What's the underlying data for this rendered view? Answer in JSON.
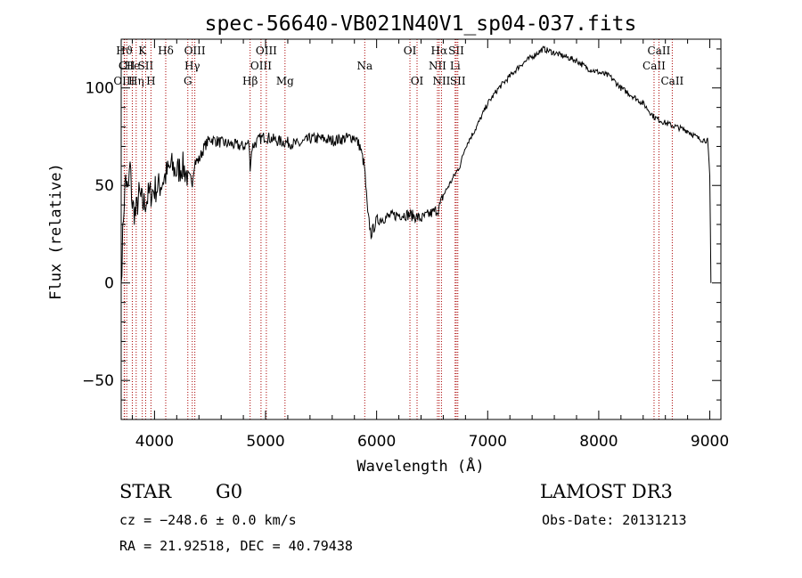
{
  "chart_data": {
    "type": "line",
    "title": "spec-56640-VB021N40V1_sp04-037.fits",
    "xlabel": "Wavelength (Å)",
    "ylabel": "Flux (relative)",
    "xlim": [
      3700,
      9100
    ],
    "ylim": [
      -70,
      125
    ],
    "x_ticks": [
      4000,
      5000,
      6000,
      7000,
      8000,
      9000
    ],
    "y_ticks": [
      -50,
      0,
      50,
      100
    ],
    "series": [
      {
        "name": "flux",
        "x": [
          3700,
          3720,
          3740,
          3760,
          3780,
          3800,
          3830,
          3860,
          3900,
          3950,
          4000,
          4050,
          4100,
          4150,
          4200,
          4250,
          4300,
          4340,
          4360,
          4400,
          4450,
          4500,
          4600,
          4700,
          4800,
          4850,
          4861,
          4880,
          4950,
          5000,
          5100,
          5200,
          5300,
          5400,
          5500,
          5600,
          5700,
          5800,
          5850,
          5890,
          5920,
          5950,
          6000,
          6100,
          6200,
          6300,
          6400,
          6500,
          6560,
          6600,
          6650,
          6700,
          6750,
          6800,
          6900,
          7000,
          7100,
          7200,
          7300,
          7400,
          7500,
          7600,
          7700,
          7800,
          7900,
          8000,
          8100,
          8200,
          8300,
          8400,
          8500,
          8600,
          8700,
          8800,
          8900,
          8980,
          9000,
          9010
        ],
        "y": [
          0,
          35,
          55,
          45,
          60,
          40,
          35,
          45,
          40,
          45,
          48,
          50,
          55,
          60,
          57,
          60,
          55,
          52,
          62,
          63,
          70,
          74,
          72,
          71,
          70,
          72,
          60,
          70,
          74,
          75,
          73,
          72,
          71,
          74,
          74,
          73,
          74,
          75,
          70,
          60,
          35,
          25,
          32,
          34,
          35,
          35,
          33,
          36,
          38,
          45,
          50,
          55,
          60,
          70,
          80,
          92,
          100,
          106,
          112,
          116,
          120,
          118,
          116,
          114,
          110,
          108,
          106,
          100,
          96,
          92,
          85,
          82,
          80,
          78,
          74,
          73,
          55,
          0
        ]
      }
    ],
    "line_ids": [
      {
        "w": 3730,
        "label": "Hϑ",
        "row": 0
      },
      {
        "w": 3750,
        "label": "CII",
        "row": 1
      },
      {
        "w": 3727,
        "label": "OIII",
        "row": 2
      },
      {
        "w": 3800,
        "label": "He",
        "row": 1
      },
      {
        "w": 3835,
        "label": "Hη",
        "row": 2
      },
      {
        "w": 3890,
        "label": "K",
        "row": 0
      },
      {
        "w": 3920,
        "label": "SII",
        "row": 1
      },
      {
        "w": 3968,
        "label": "H",
        "row": 2
      },
      {
        "w": 4101,
        "label": "Hδ",
        "row": 0
      },
      {
        "w": 4300,
        "label": "G",
        "row": 2
      },
      {
        "w": 4340,
        "label": "Hγ",
        "row": 1
      },
      {
        "w": 4363,
        "label": "OIII",
        "row": 0
      },
      {
        "w": 4861,
        "label": "Hβ",
        "row": 2
      },
      {
        "w": 4959,
        "label": "OIII",
        "row": 1
      },
      {
        "w": 5007,
        "label": "OIII",
        "row": 0
      },
      {
        "w": 5175,
        "label": "Mg",
        "row": 2
      },
      {
        "w": 5893,
        "label": "Na",
        "row": 1
      },
      {
        "w": 6300,
        "label": "OI",
        "row": 0
      },
      {
        "w": 6364,
        "label": "OI",
        "row": 2
      },
      {
        "w": 6548,
        "label": "NII",
        "row": 1
      },
      {
        "w": 6563,
        "label": "Hα",
        "row": 0
      },
      {
        "w": 6584,
        "label": "NII",
        "row": 2
      },
      {
        "w": 6707,
        "label": "Li",
        "row": 1
      },
      {
        "w": 6717,
        "label": "SII",
        "row": 0
      },
      {
        "w": 6731,
        "label": "SII",
        "row": 2
      },
      {
        "w": 8498,
        "label": "CaII",
        "row": 1
      },
      {
        "w": 8542,
        "label": "CaII",
        "row": 0
      },
      {
        "w": 8662,
        "label": "CaII",
        "row": 2
      }
    ]
  },
  "info": {
    "object_type": "STAR",
    "subclass": "G0",
    "survey": "LAMOST DR3",
    "cz": "cz = −248.6 ± 0.0 km/s",
    "obs_date": "Obs-Date: 20131213",
    "coords": "RA =  21.92518, DEC =  40.79438"
  },
  "colors": {
    "line": "#000000",
    "marker": "#aa0000"
  }
}
